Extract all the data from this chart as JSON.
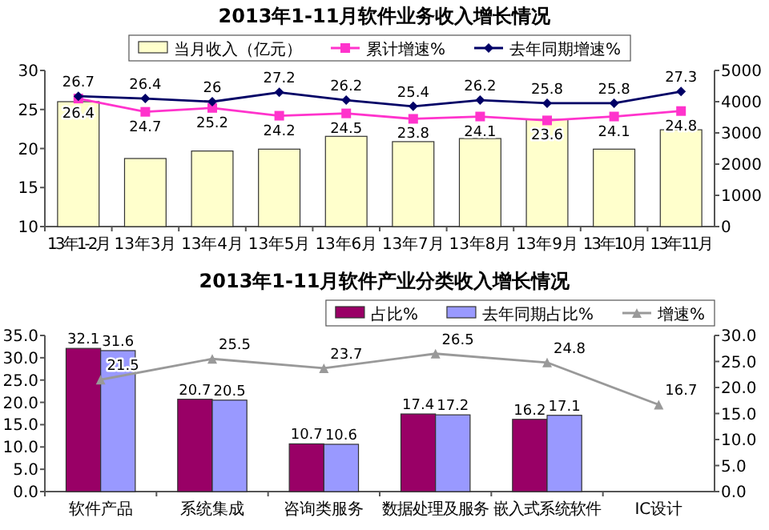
{
  "chart_data": [
    {
      "type": "bar",
      "title": "2013年1-11月软件业务收入增长情况",
      "categories": [
        "13年1-2月",
        "13年3月",
        "13年4月",
        "13年5月",
        "13年6月",
        "13年7月",
        "13年8月",
        "13年9月",
        "13年10月",
        "13年11月"
      ],
      "series": [
        {
          "name": "当月收入（亿元）",
          "axis": "y2",
          "color": "#ffffcc",
          "values": [
            4000,
            2180,
            2420,
            2480,
            2890,
            2720,
            2820,
            3430,
            2480,
            3100
          ]
        },
        {
          "name": "累计增速%",
          "type": "line",
          "marker": "square",
          "color": "#ff33cc",
          "values": [
            26.4,
            24.7,
            25.2,
            24.2,
            24.5,
            23.8,
            24.1,
            23.6,
            24.1,
            24.8
          ],
          "value_labels": [
            "26.4",
            "24.7",
            "25.2",
            "24.2",
            "24.5",
            "23.8",
            "24.1",
            "23.6",
            "24.1",
            "24.8"
          ]
        },
        {
          "name": "去年同期增速%",
          "type": "line",
          "marker": "diamond",
          "color": "#000066",
          "values": [
            26.7,
            26.4,
            26,
            27.2,
            26.2,
            25.4,
            26.2,
            25.8,
            25.8,
            27.3
          ],
          "value_labels": [
            "26.7",
            "26.4",
            "26",
            "27.2",
            "26.2",
            "25.4",
            "26.2",
            "25.8",
            "25.8",
            "27.3"
          ]
        }
      ],
      "ylim": [
        10,
        30
      ],
      "yticks": [
        10,
        15,
        20,
        25,
        30
      ],
      "y2lim": [
        0,
        5000
      ],
      "y2ticks": [
        0,
        1000,
        2000,
        3000,
        4000,
        5000
      ],
      "legend": "top",
      "grid": false
    },
    {
      "type": "bar",
      "title": "2013年1-11月软件产业分类收入增长情况",
      "categories": [
        "软件产品",
        "系统集成",
        "咨询类服务",
        "数据处理及服务",
        "嵌入式系统软件",
        "IC设计"
      ],
      "series": [
        {
          "name": "占比%",
          "color": "#990066",
          "values": [
            32.1,
            20.7,
            10.7,
            17.4,
            16.2,
            null
          ]
        },
        {
          "name": "去年同期占比%",
          "color": "#9999ff",
          "values": [
            31.6,
            20.5,
            10.6,
            17.2,
            17.1,
            null
          ]
        },
        {
          "name": "增速%",
          "type": "line",
          "axis": "y2",
          "marker": "triangle",
          "color": "#999999",
          "values": [
            21.5,
            25.5,
            23.7,
            26.5,
            24.8,
            16.7
          ]
        }
      ],
      "data_labels": true,
      "ylim": [
        0,
        35
      ],
      "yticks": [
        {
          "value": 0,
          "label": "0.0"
        },
        {
          "value": 5,
          "label": "5.0"
        },
        {
          "value": 10,
          "label": "10.0"
        },
        {
          "value": 15,
          "label": "15.0"
        },
        {
          "value": 20,
          "label": "20.0"
        },
        {
          "value": 25,
          "label": "25.0"
        },
        {
          "value": 30,
          "label": "30.0"
        },
        {
          "value": 35,
          "label": "35.0"
        }
      ],
      "y2lim": [
        0,
        30
      ],
      "y2ticks": [
        {
          "value": 0,
          "label": "0.0"
        },
        {
          "value": 5,
          "label": "5.0"
        },
        {
          "value": 10,
          "label": "10.0"
        },
        {
          "value": 15,
          "label": "15.0"
        },
        {
          "value": 20,
          "label": "20.0"
        },
        {
          "value": 25,
          "label": "25.0"
        },
        {
          "value": 30,
          "label": "30.0"
        }
      ],
      "legend": "top right",
      "grid": false
    }
  ]
}
